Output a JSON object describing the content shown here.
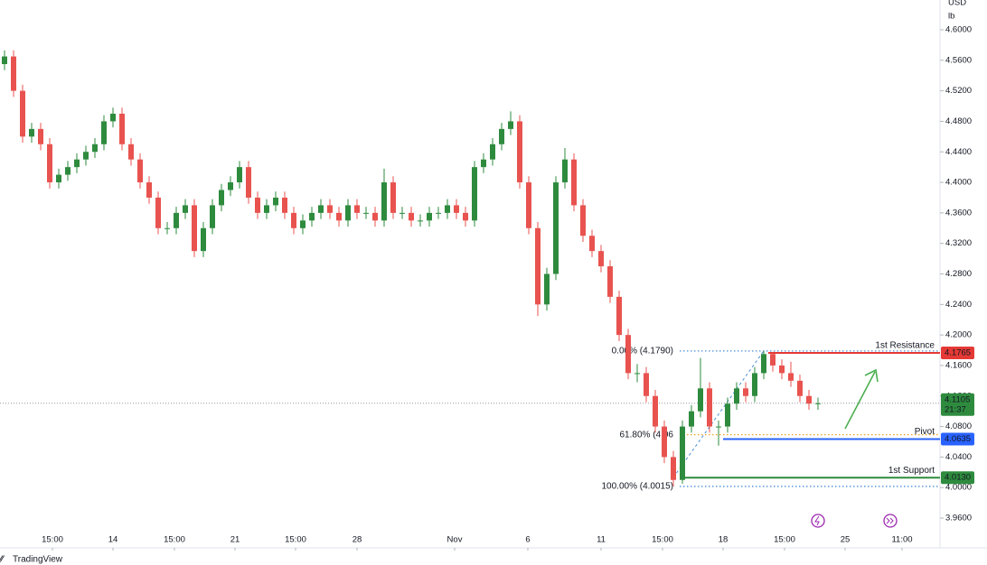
{
  "header": {
    "currency": "USD",
    "unit": "lb"
  },
  "chart_data": {
    "type": "candlestick",
    "up_color": "#2e8b3e",
    "down_color": "#e8534f",
    "open": [
      4.555,
      4.565,
      4.52,
      4.46,
      4.47,
      4.45,
      4.4,
      4.41,
      4.42,
      4.43,
      4.44,
      4.45,
      4.48,
      4.49,
      4.45,
      4.43,
      4.4,
      4.38,
      4.34,
      4.34,
      4.36,
      4.37,
      4.31,
      4.34,
      4.37,
      4.39,
      4.4,
      4.42,
      4.38,
      4.36,
      4.37,
      4.38,
      4.36,
      4.34,
      4.35,
      4.36,
      4.37,
      4.36,
      4.35,
      4.37,
      4.36,
      4.36,
      4.35,
      4.4,
      4.36,
      4.36,
      4.35,
      4.35,
      4.36,
      4.36,
      4.37,
      4.36,
      4.35,
      4.42,
      4.43,
      4.45,
      4.47,
      4.48,
      4.4,
      4.34,
      4.24,
      4.28,
      4.4,
      4.43,
      4.37,
      4.33,
      4.31,
      4.29,
      4.25,
      4.2,
      4.15,
      4.15,
      4.12,
      4.08,
      4.04,
      4.01,
      4.08,
      4.1,
      4.13,
      4.08,
      4.08,
      4.11,
      4.13,
      4.12,
      4.15,
      4.175,
      4.16,
      4.15,
      4.14,
      4.12,
      4.11
    ],
    "high": [
      4.573,
      4.573,
      4.528,
      4.478,
      4.478,
      4.458,
      4.418,
      4.428,
      4.438,
      4.448,
      4.458,
      4.488,
      4.498,
      4.498,
      4.458,
      4.438,
      4.408,
      4.388,
      4.348,
      4.368,
      4.378,
      4.378,
      4.348,
      4.378,
      4.398,
      4.408,
      4.428,
      4.428,
      4.388,
      4.378,
      4.388,
      4.388,
      4.368,
      4.358,
      4.368,
      4.378,
      4.378,
      4.368,
      4.378,
      4.378,
      4.368,
      4.368,
      4.418,
      4.408,
      4.368,
      4.368,
      4.358,
      4.368,
      4.368,
      4.378,
      4.378,
      4.368,
      4.428,
      4.438,
      4.458,
      4.478,
      4.493,
      4.488,
      4.408,
      4.348,
      4.288,
      4.408,
      4.445,
      4.438,
      4.378,
      4.338,
      4.318,
      4.298,
      4.258,
      4.208,
      4.162,
      4.158,
      4.128,
      4.088,
      4.048,
      4.088,
      4.108,
      4.17,
      4.138,
      4.088,
      4.118,
      4.138,
      4.138,
      4.158,
      4.179,
      4.178,
      4.168,
      4.165,
      4.148,
      4.128,
      4.118
    ],
    "low": [
      4.547,
      4.512,
      4.452,
      4.452,
      4.442,
      4.392,
      4.392,
      4.402,
      4.412,
      4.422,
      4.432,
      4.442,
      4.472,
      4.442,
      4.422,
      4.392,
      4.372,
      4.332,
      4.332,
      4.332,
      4.352,
      4.302,
      4.302,
      4.332,
      4.362,
      4.382,
      4.392,
      4.372,
      4.352,
      4.352,
      4.362,
      4.352,
      4.332,
      4.332,
      4.342,
      4.352,
      4.352,
      4.342,
      4.342,
      4.352,
      4.352,
      4.342,
      4.342,
      4.352,
      4.352,
      4.342,
      4.342,
      4.342,
      4.352,
      4.352,
      4.352,
      4.342,
      4.342,
      4.412,
      4.422,
      4.442,
      4.462,
      4.392,
      4.332,
      4.225,
      4.232,
      4.272,
      4.392,
      4.362,
      4.322,
      4.302,
      4.282,
      4.242,
      4.192,
      4.142,
      4.138,
      4.112,
      4.072,
      4.032,
      4.0015,
      4.005,
      4.072,
      4.092,
      4.072,
      4.055,
      4.072,
      4.102,
      4.112,
      4.112,
      4.142,
      4.152,
      4.142,
      4.132,
      4.112,
      4.102,
      4.102
    ],
    "close": [
      4.565,
      4.52,
      4.46,
      4.47,
      4.45,
      4.4,
      4.41,
      4.42,
      4.43,
      4.44,
      4.45,
      4.48,
      4.49,
      4.45,
      4.43,
      4.4,
      4.38,
      4.34,
      4.34,
      4.36,
      4.37,
      4.31,
      4.34,
      4.37,
      4.39,
      4.4,
      4.42,
      4.38,
      4.36,
      4.37,
      4.38,
      4.36,
      4.34,
      4.35,
      4.36,
      4.37,
      4.36,
      4.35,
      4.37,
      4.36,
      4.36,
      4.35,
      4.4,
      4.36,
      4.36,
      4.35,
      4.35,
      4.36,
      4.36,
      4.37,
      4.36,
      4.35,
      4.42,
      4.43,
      4.45,
      4.47,
      4.48,
      4.4,
      4.34,
      4.24,
      4.28,
      4.4,
      4.43,
      4.37,
      4.33,
      4.31,
      4.29,
      4.25,
      4.2,
      4.15,
      4.15,
      4.12,
      4.08,
      4.04,
      4.01,
      4.08,
      4.1,
      4.13,
      4.08,
      4.08,
      4.11,
      4.13,
      4.12,
      4.15,
      4.175,
      4.16,
      4.15,
      4.14,
      4.12,
      4.11,
      4.1105
    ],
    "xlim": [
      -0.5,
      103.5
    ],
    "xticks": [
      {
        "value": 5.3,
        "label": "15:00"
      },
      {
        "value": 12,
        "label": "14"
      },
      {
        "value": 18.8,
        "label": "15:00"
      },
      {
        "value": 25.5,
        "label": "21"
      },
      {
        "value": 32.2,
        "label": "15:00"
      },
      {
        "value": 39,
        "label": "28"
      },
      {
        "value": 49.8,
        "label": "Nov"
      },
      {
        "value": 57.9,
        "label": "6"
      },
      {
        "value": 66,
        "label": "11"
      },
      {
        "value": 72.8,
        "label": "15:00"
      },
      {
        "value": 79.5,
        "label": "18"
      },
      {
        "value": 86.3,
        "label": "15:00"
      },
      {
        "value": 93,
        "label": "25"
      },
      {
        "value": 99.3,
        "label": "11:00"
      }
    ],
    "ylim": [
      3.921,
      4.639
    ],
    "yticks": [
      {
        "value": 4.6,
        "label": "4.6000"
      },
      {
        "value": 4.56,
        "label": "4.5600"
      },
      {
        "value": 4.52,
        "label": "4.5200"
      },
      {
        "value": 4.48,
        "label": "4.4800"
      },
      {
        "value": 4.44,
        "label": "4.4400"
      },
      {
        "value": 4.4,
        "label": "4.4000"
      },
      {
        "value": 4.36,
        "label": "4.3600"
      },
      {
        "value": 4.32,
        "label": "4.3200"
      },
      {
        "value": 4.28,
        "label": "4.2800"
      },
      {
        "value": 4.24,
        "label": "4.2400"
      },
      {
        "value": 4.2,
        "label": "4.2000"
      },
      {
        "value": 4.16,
        "label": "4.1600"
      },
      {
        "value": 4.12,
        "label": "4.1200"
      },
      {
        "value": 4.08,
        "label": "4.0800"
      },
      {
        "value": 4.04,
        "label": "4.0400"
      },
      {
        "value": 4.0,
        "label": "4.0000"
      },
      {
        "value": 3.96,
        "label": "3.9600"
      }
    ],
    "levels": [
      {
        "name": "1st Resistance",
        "value": 4.1765,
        "label": "4.1765",
        "color": "#e53935"
      },
      {
        "name": "Pivot",
        "value": 4.0635,
        "label": "4.0635",
        "color": "#2962ff"
      },
      {
        "name": "1st Support",
        "value": 4.013,
        "label": "4.0130",
        "color": "#2e8b3e"
      }
    ],
    "fib": [
      {
        "value": 4.179,
        "label": "0.00% (4.1790)",
        "color": "#4a8fd8"
      },
      {
        "value": 4.0693,
        "label": "61.80% (4.06",
        "color": "#f0a020"
      },
      {
        "value": 4.0015,
        "label": "100.00% (4.0015)",
        "color": "#4a8fd8"
      }
    ],
    "last_price": {
      "value": 4.1105,
      "label": "4.1105",
      "countdown": "21:37",
      "color": "#2e8b3e"
    }
  },
  "footer": "TradingView"
}
